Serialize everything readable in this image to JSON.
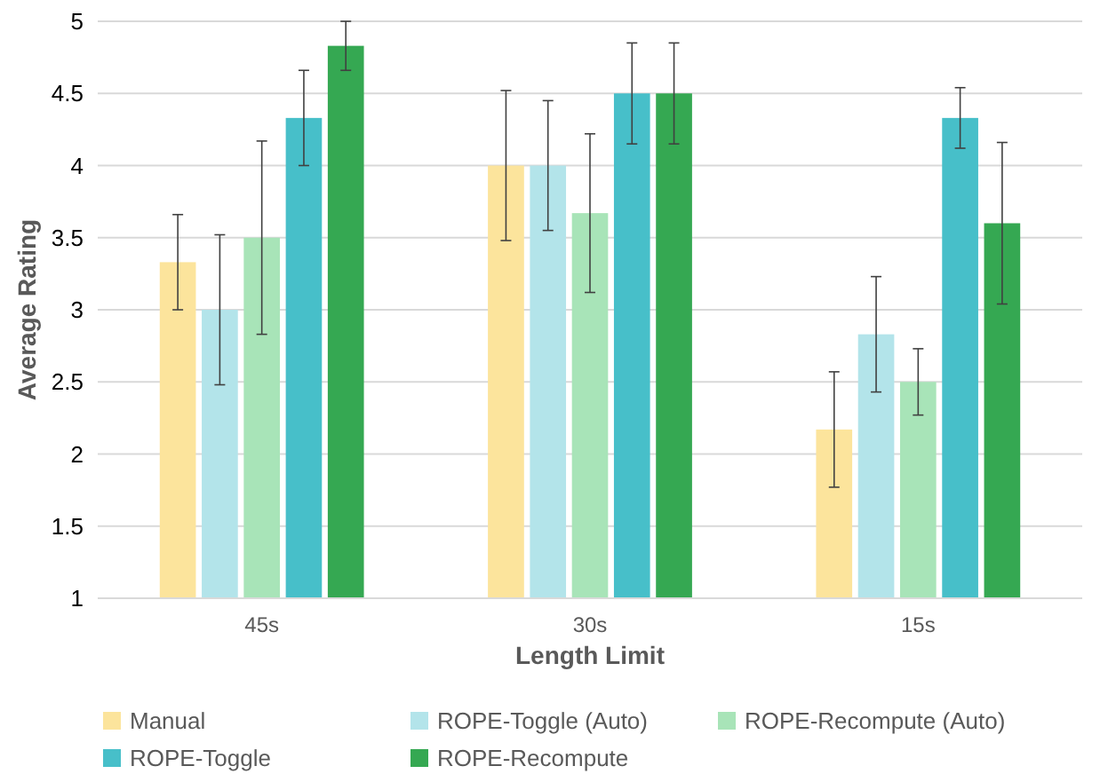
{
  "chart_data": {
    "type": "bar",
    "xlabel": "Length Limit",
    "ylabel": "Average Rating",
    "categories": [
      "45s",
      "30s",
      "15s"
    ],
    "series": [
      {
        "name": "Manual",
        "color": "#fce49c",
        "values": [
          3.33,
          4.0,
          2.17
        ],
        "errors": [
          0.33,
          0.52,
          0.4
        ]
      },
      {
        "name": "ROPE-Toggle (Auto)",
        "color": "#b3e4ea",
        "values": [
          3.0,
          4.0,
          2.83
        ],
        "errors": [
          0.52,
          0.45,
          0.4
        ]
      },
      {
        "name": "ROPE-Recompute (Auto)",
        "color": "#a8e4b8",
        "values": [
          3.5,
          3.67,
          2.5
        ],
        "errors": [
          0.67,
          0.55,
          0.23
        ]
      },
      {
        "name": "ROPE-Toggle",
        "color": "#47bfc9",
        "values": [
          4.33,
          4.5,
          4.33
        ],
        "errors": [
          0.33,
          0.35,
          0.21
        ]
      },
      {
        "name": "ROPE-Recompute",
        "color": "#35a852",
        "values": [
          4.83,
          4.5,
          3.6
        ],
        "errors": [
          0.17,
          0.35,
          0.56
        ]
      }
    ],
    "ylim": [
      1,
      5
    ],
    "yticks": [
      1,
      1.5,
      2,
      2.5,
      3,
      3.5,
      4,
      4.5,
      5
    ],
    "grid": "y",
    "legend": "bottom"
  }
}
